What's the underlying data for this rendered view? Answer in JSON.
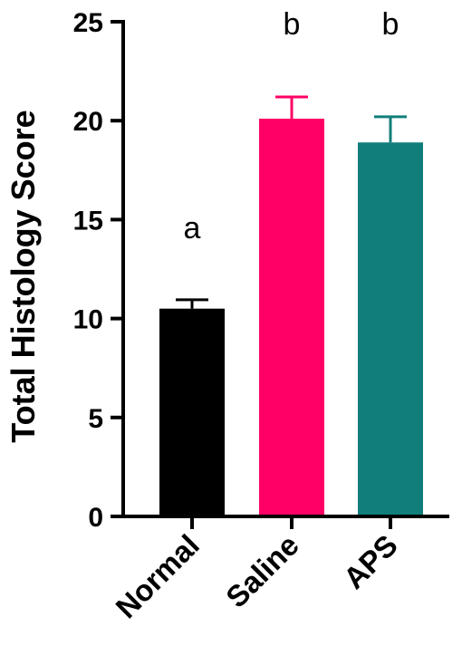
{
  "chart_data": {
    "type": "bar",
    "title": "",
    "xlabel": "",
    "ylabel": "Total Histology Score",
    "ylim": [
      0,
      25
    ],
    "yticks": [
      0,
      5,
      10,
      15,
      20,
      25
    ],
    "categories": [
      "Normal",
      "Saline",
      "APS"
    ],
    "values": [
      10.5,
      20.1,
      18.9
    ],
    "errors": [
      0.45,
      1.1,
      1.3
    ],
    "significance_labels": [
      "a",
      "b",
      "b"
    ],
    "colors": [
      "#000000",
      "#ff0066",
      "#117e7b"
    ],
    "grid": false,
    "legend": "none"
  }
}
